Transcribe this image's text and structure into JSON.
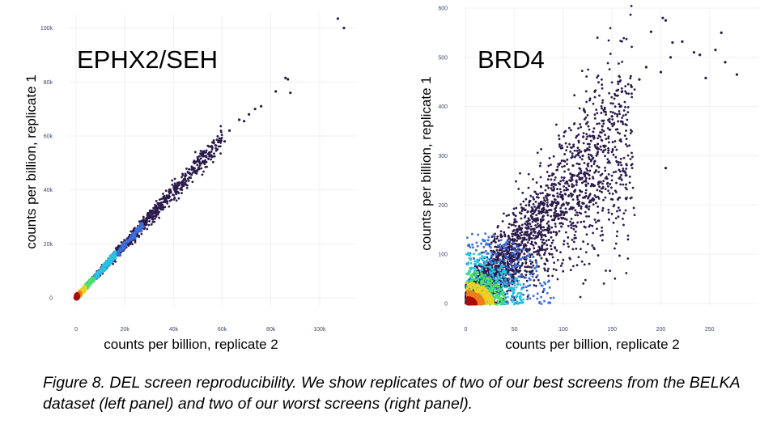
{
  "figure": {
    "caption": "Figure 8. DEL screen reproducibility. We show replicates of two of our best screens from the BELKA dataset (left panel) and two of our worst screens (right panel)."
  },
  "colors": {
    "low": "#2b1a4b",
    "mid": "#3d6fd8",
    "cyan": "#27c3e0",
    "green": "#4ee06a",
    "yellow": "#f0d020",
    "orange": "#f07d18",
    "high": "#a80c0c",
    "grid": "#eef0f5",
    "tick": "#3a4a6a"
  },
  "chart_data": [
    {
      "type": "scatter",
      "title": "EPHX2/SEH",
      "xlabel": "counts per billion, replicate 2",
      "ylabel": "counts per billion, replicate 1",
      "xlim": [
        -3000,
        115000
      ],
      "ylim": [
        -3000,
        105000
      ],
      "xticks": [
        0,
        20000,
        40000,
        60000,
        80000,
        100000
      ],
      "xtick_labels": [
        "0",
        "20k",
        "40k",
        "60k",
        "80k",
        "100k"
      ],
      "yticks": [
        0,
        20000,
        40000,
        60000,
        80000,
        100000
      ],
      "ytick_labels": [
        "0",
        "20k",
        "40k",
        "60k",
        "80k",
        "100k"
      ],
      "density_colored": true,
      "points": [
        [
          107500,
          103500
        ],
        [
          110000,
          100000
        ],
        [
          86000,
          81500
        ],
        [
          87000,
          81000
        ],
        [
          88000,
          76000
        ],
        [
          82000,
          76500
        ],
        [
          76000,
          71000
        ],
        [
          73500,
          70000
        ],
        [
          69000,
          65500
        ],
        [
          67000,
          66000
        ],
        [
          71000,
          68000
        ],
        [
          63000,
          62000
        ],
        [
          61000,
          58000
        ],
        [
          58000,
          55000
        ],
        [
          55500,
          52500
        ],
        [
          52000,
          50500
        ],
        [
          49000,
          47000
        ],
        [
          47000,
          44500
        ],
        [
          44000,
          41500
        ],
        [
          41000,
          39000
        ],
        [
          38000,
          37000
        ],
        [
          35000,
          33500
        ],
        [
          33000,
          32000
        ],
        [
          30000,
          29500
        ],
        [
          28000,
          27000
        ],
        [
          26000,
          25500
        ],
        [
          24000,
          23000
        ],
        [
          22000,
          21500
        ]
      ]
    },
    {
      "type": "scatter",
      "title": "BRD4",
      "xlabel": "counts per billion, replicate 2",
      "ylabel": "counts per billion, replicate 1",
      "xlim": [
        -2,
        300
      ],
      "ylim": [
        -5,
        600
      ],
      "xticks": [
        0,
        50,
        100,
        150,
        200,
        250
      ],
      "xtick_labels": [
        "0",
        "50",
        "100",
        "150",
        "200",
        "250"
      ],
      "yticks": [
        0,
        100,
        200,
        300,
        400,
        500,
        600
      ],
      "ytick_labels": [
        "0",
        "100",
        "200",
        "300",
        "400",
        "500",
        "600"
      ],
      "density_colored": true,
      "points": [
        [
          202,
          580
        ],
        [
          205,
          575
        ],
        [
          190,
          552
        ],
        [
          262,
          550
        ],
        [
          222,
          532
        ],
        [
          212,
          530
        ],
        [
          256,
          515
        ],
        [
          234,
          510
        ],
        [
          240,
          505
        ],
        [
          210,
          500
        ],
        [
          266,
          490
        ],
        [
          278,
          465
        ],
        [
          246,
          458
        ],
        [
          200,
          470
        ],
        [
          185,
          480
        ],
        [
          178,
          455
        ],
        [
          170,
          440
        ],
        [
          160,
          430
        ],
        [
          205,
          275
        ],
        [
          150,
          380
        ],
        [
          140,
          360
        ],
        [
          130,
          340
        ],
        [
          120,
          300
        ],
        [
          110,
          280
        ],
        [
          100,
          250
        ],
        [
          90,
          230
        ],
        [
          80,
          200
        ],
        [
          70,
          170
        ],
        [
          60,
          140
        ],
        [
          50,
          110
        ]
      ]
    }
  ]
}
